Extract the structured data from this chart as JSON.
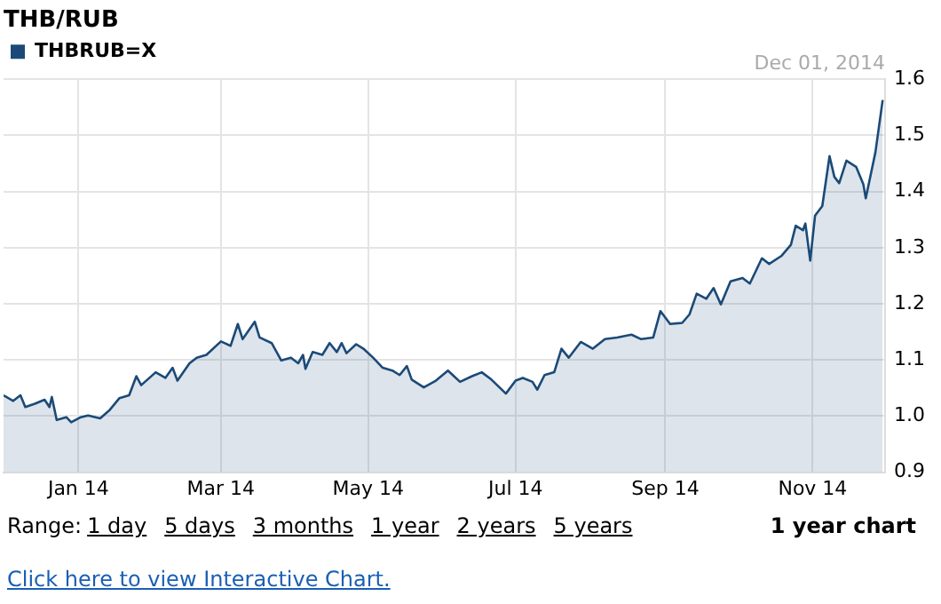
{
  "chart_data": {
    "type": "area",
    "title": "THB/RUB",
    "legend": "top left",
    "grid": true,
    "marker": "none",
    "xlim": [
      "2013-12-01",
      "2014-12-01"
    ],
    "xticks": [
      {
        "value": "2014-01-01",
        "label": "Jan 14"
      },
      {
        "value": "2014-03-01",
        "label": "Mar 14"
      },
      {
        "value": "2014-05-01",
        "label": "May 14"
      },
      {
        "value": "2014-07-01",
        "label": "Jul 14"
      },
      {
        "value": "2014-09-01",
        "label": "Sep 14"
      },
      {
        "value": "2014-11-01",
        "label": "Nov 14"
      }
    ],
    "ylim": [
      0.9,
      1.6
    ],
    "yticks": [
      0.9,
      {
        "value": 1,
        "label": "1.0"
      },
      1.1,
      1.2,
      1.3,
      1.4,
      1.5,
      1.6
    ],
    "x": [
      "2013-12-01",
      "2013-12-05",
      "2013-12-08",
      "2013-12-10",
      "2013-12-14",
      "2013-12-18",
      "2013-12-20",
      "2013-12-21",
      "2013-12-23",
      "2013-12-27",
      "2013-12-29",
      "2014-01-02",
      "2014-01-05",
      "2014-01-10",
      "2014-01-14",
      "2014-01-18",
      "2014-01-22",
      "2014-01-25",
      "2014-01-27",
      "2014-02-02",
      "2014-02-06",
      "2014-02-09",
      "2014-02-11",
      "2014-02-16",
      "2014-02-19",
      "2014-02-23",
      "2014-03-01",
      "2014-03-05",
      "2014-03-08",
      "2014-03-10",
      "2014-03-15",
      "2014-03-17",
      "2014-03-22",
      "2014-03-26",
      "2014-03-30",
      "2014-04-02",
      "2014-04-04",
      "2014-04-05",
      "2014-04-08",
      "2014-04-12",
      "2014-04-15",
      "2014-04-18",
      "2014-04-20",
      "2014-04-22",
      "2014-04-26",
      "2014-04-29",
      "2014-05-03",
      "2014-05-07",
      "2014-05-11",
      "2014-05-14",
      "2014-05-17",
      "2014-05-19",
      "2014-05-24",
      "2014-05-29",
      "2014-06-03",
      "2014-06-08",
      "2014-06-13",
      "2014-06-17",
      "2014-06-21",
      "2014-06-27",
      "2014-07-01",
      "2014-07-04",
      "2014-07-08",
      "2014-07-10",
      "2014-07-13",
      "2014-07-17",
      "2014-07-20",
      "2014-07-23",
      "2014-07-28",
      "2014-08-02",
      "2014-08-07",
      "2014-08-12",
      "2014-08-18",
      "2014-08-22",
      "2014-08-27",
      "2014-08-30",
      "2014-09-03",
      "2014-09-08",
      "2014-09-11",
      "2014-09-14",
      "2014-09-18",
      "2014-09-21",
      "2014-09-24",
      "2014-09-28",
      "2014-10-03",
      "2014-10-06",
      "2014-10-11",
      "2014-10-14",
      "2014-10-19",
      "2014-10-23",
      "2014-10-25",
      "2014-10-28",
      "2014-10-29",
      "2014-10-31",
      "2014-11-02",
      "2014-11-05",
      "2014-11-08",
      "2014-11-10",
      "2014-11-12",
      "2014-11-15",
      "2014-11-19",
      "2014-11-22",
      "2014-11-23",
      "2014-11-27",
      "2014-11-30"
    ],
    "series": [
      {
        "name": "THBRUB=X",
        "color": "#1b4a78",
        "values": [
          1.037,
          1.027,
          1.037,
          1.016,
          1.022,
          1.029,
          1.016,
          1.034,
          0.993,
          0.998,
          0.989,
          0.998,
          1.001,
          0.996,
          1.011,
          1.032,
          1.037,
          1.071,
          1.055,
          1.078,
          1.068,
          1.086,
          1.063,
          1.094,
          1.104,
          1.109,
          1.133,
          1.125,
          1.164,
          1.137,
          1.168,
          1.14,
          1.13,
          1.099,
          1.104,
          1.094,
          1.109,
          1.084,
          1.114,
          1.109,
          1.13,
          1.114,
          1.13,
          1.112,
          1.128,
          1.12,
          1.104,
          1.086,
          1.081,
          1.073,
          1.089,
          1.065,
          1.051,
          1.063,
          1.081,
          1.061,
          1.071,
          1.078,
          1.065,
          1.04,
          1.063,
          1.068,
          1.061,
          1.047,
          1.073,
          1.078,
          1.12,
          1.104,
          1.132,
          1.12,
          1.137,
          1.14,
          1.145,
          1.137,
          1.14,
          1.187,
          1.164,
          1.166,
          1.181,
          1.218,
          1.209,
          1.228,
          1.199,
          1.24,
          1.246,
          1.236,
          1.281,
          1.271,
          1.285,
          1.305,
          1.339,
          1.331,
          1.343,
          1.277,
          1.357,
          1.374,
          1.463,
          1.426,
          1.415,
          1.455,
          1.444,
          1.413,
          1.388,
          1.47,
          1.563
        ]
      }
    ],
    "annotations": [
      "Dec 01, 2014",
      "Range:",
      "1 day",
      "5 days",
      "3 months",
      "1 year",
      "2 years",
      "5 years",
      "1 year chart",
      "Click here to view Interactive Chart."
    ]
  }
}
